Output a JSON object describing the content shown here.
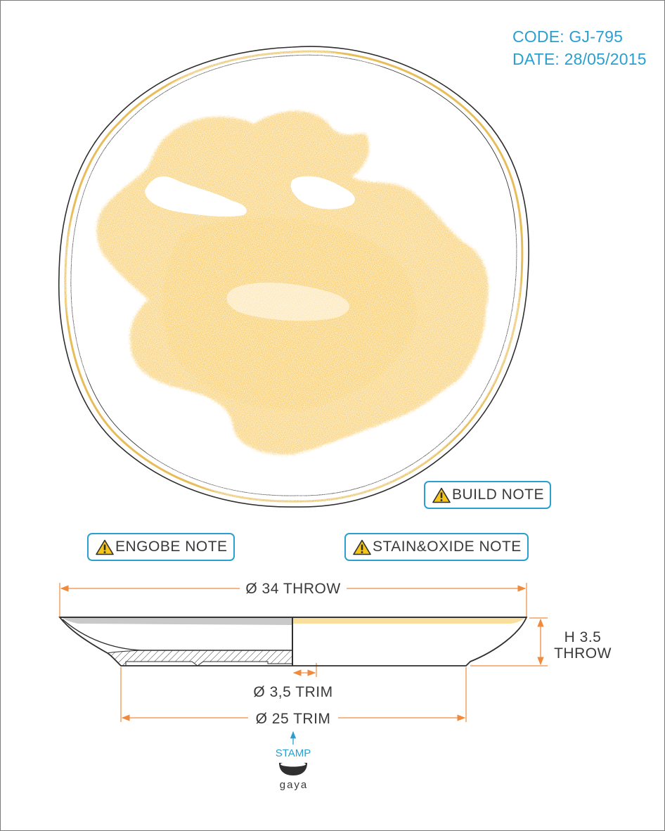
{
  "header": {
    "code": "CODE: GJ-795",
    "date": "DATE: 28/05/2015"
  },
  "notes": {
    "build": "BUILD NOTE",
    "engobe": "ENGOBE NOTE",
    "stain_oxide": "STAIN&OXIDE NOTE"
  },
  "dimensions": {
    "diameter_throw": "Ø 34 THROW",
    "height_line1": "H 3.5",
    "height_line2": "THROW",
    "foot_trim": "Ø 3,5 TRIM",
    "base_trim": "Ø 25 TRIM"
  },
  "stamp": {
    "label": "STAMP",
    "brand": "gaya"
  },
  "colors": {
    "accent_blue": "#2a9fd0",
    "dimension_orange": "#f08a3c",
    "glaze_yellow": "#f6c24a",
    "rim_gold": "#e3b23c",
    "engobe_grey": "#c9c9c9"
  }
}
